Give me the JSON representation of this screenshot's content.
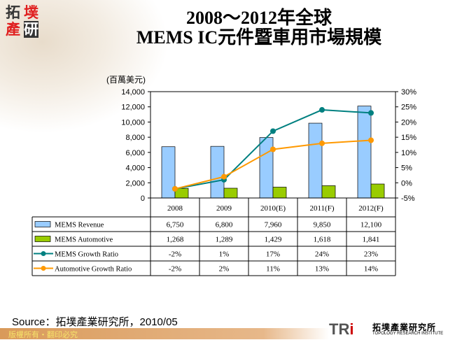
{
  "logo": {
    "c1": "拓",
    "c2": "墣",
    "c3": "產",
    "c4": "研"
  },
  "title_line1": "2008～2012年全球",
  "title_line2": "MEMS IC元件暨車用市場規模",
  "unit": "(百萬美元)",
  "chart_data": {
    "type": "bar+line",
    "categories": [
      "2008",
      "2009",
      "2010(E)",
      "2011(F)",
      "2012(F)"
    ],
    "y_left": {
      "ticks": [
        "0",
        "2,000",
        "4,000",
        "6,000",
        "8,000",
        "10,000",
        "12,000",
        "14,000"
      ],
      "range": [
        0,
        14000
      ]
    },
    "y_right": {
      "ticks": [
        "-5%",
        "0%",
        "5%",
        "10%",
        "15%",
        "20%",
        "25%",
        "30%"
      ],
      "range": [
        -5,
        30
      ]
    },
    "grid": false,
    "series": [
      {
        "name": "MEMS Revenue",
        "type": "bar",
        "axis": "left",
        "color": "#99ccff",
        "values": [
          6750,
          6800,
          7960,
          9850,
          12100
        ],
        "labels": [
          "6,750",
          "6,800",
          "7,960",
          "9,850",
          "12,100"
        ]
      },
      {
        "name": "MEMS Automotive",
        "type": "bar",
        "axis": "left",
        "color": "#99cc00",
        "values": [
          1268,
          1289,
          1429,
          1618,
          1841
        ],
        "labels": [
          "1,268",
          "1,289",
          "1,429",
          "1,618",
          "1,841"
        ]
      },
      {
        "name": "MEMS Growth Ratio",
        "type": "line",
        "axis": "right",
        "color": "#008080",
        "values": [
          -2,
          1,
          17,
          24,
          23
        ],
        "labels": [
          "-2%",
          "1%",
          "17%",
          "24%",
          "23%"
        ]
      },
      {
        "name": "Automotive Growth Ratio",
        "type": "line",
        "axis": "right",
        "color": "#ff9900",
        "values": [
          -2,
          2,
          11,
          13,
          14
        ],
        "labels": [
          "-2%",
          "2%",
          "11%",
          "13%",
          "14%"
        ]
      }
    ]
  },
  "source": "Source：拓墣產業研究所，2010/05",
  "footer": "版權所有・翻印必究",
  "tri": {
    "t": "TR",
    "i": "i",
    "cn": "拓墣產業研究所",
    "en": "TOPOLOGY RESEARCH INSTITUTE"
  }
}
